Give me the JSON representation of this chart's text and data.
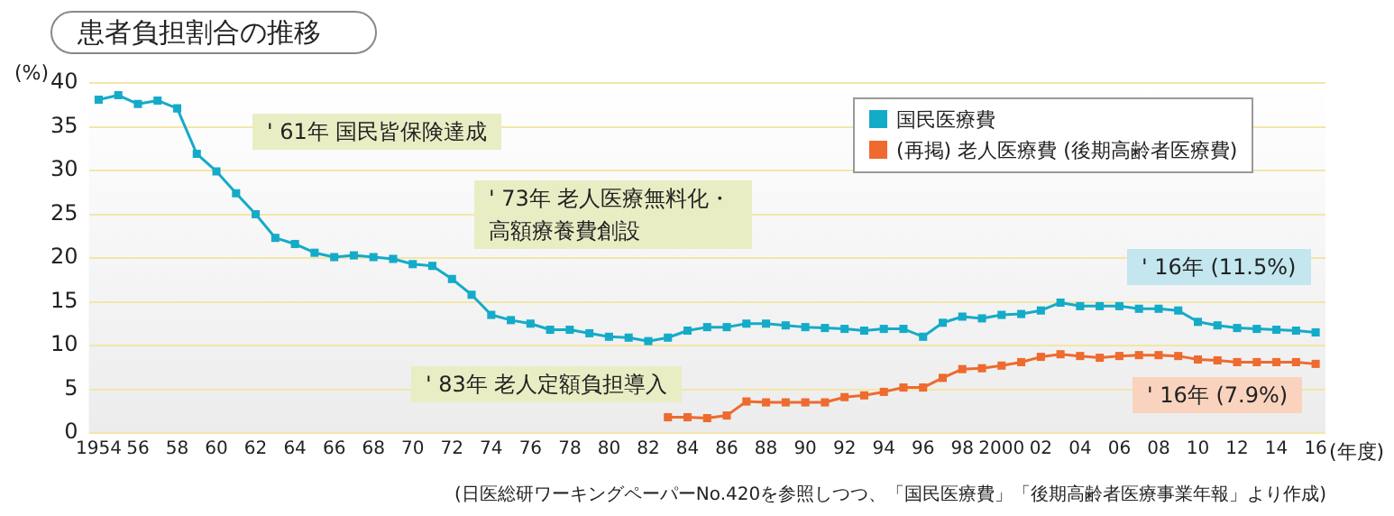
{
  "chart_data": {
    "type": "line",
    "title": "患者負担割合の推移",
    "ylabel": "(%)",
    "xlabel": "(年度)",
    "x": [
      1954,
      1955,
      1956,
      1957,
      1958,
      1959,
      1960,
      1961,
      1962,
      1963,
      1964,
      1965,
      1966,
      1967,
      1968,
      1969,
      1970,
      1971,
      1972,
      1973,
      1974,
      1975,
      1976,
      1977,
      1978,
      1979,
      1980,
      1981,
      1982,
      1983,
      1984,
      1985,
      1986,
      1987,
      1988,
      1989,
      1990,
      1991,
      1992,
      1993,
      1994,
      1995,
      1996,
      1997,
      1998,
      1999,
      2000,
      2001,
      2002,
      2003,
      2004,
      2005,
      2006,
      2007,
      2008,
      2009,
      2010,
      2011,
      2012,
      2013,
      2014,
      2015,
      2016
    ],
    "series": [
      {
        "name": "国民医療費",
        "color": "#14abc9",
        "values": [
          38.1,
          38.6,
          37.6,
          38.0,
          37.1,
          31.9,
          29.9,
          27.4,
          25.0,
          22.3,
          21.6,
          20.6,
          20.1,
          20.3,
          20.1,
          19.9,
          19.3,
          19.1,
          17.6,
          15.8,
          13.5,
          12.9,
          12.5,
          11.8,
          11.8,
          11.4,
          11.0,
          10.9,
          10.5,
          10.9,
          11.7,
          12.1,
          12.1,
          12.5,
          12.5,
          12.3,
          12.1,
          12.0,
          11.9,
          11.7,
          11.9,
          11.9,
          11.0,
          12.6,
          13.3,
          13.1,
          13.5,
          13.6,
          14.0,
          14.9,
          14.5,
          14.5,
          14.5,
          14.2,
          14.2,
          14.0,
          12.7,
          12.3,
          12.0,
          11.9,
          11.8,
          11.7,
          11.5
        ]
      },
      {
        "name": "(再掲) 老人医療費 (後期高齢者医療費)",
        "color": "#ee6a2e",
        "values": [
          null,
          null,
          null,
          null,
          null,
          null,
          null,
          null,
          null,
          null,
          null,
          null,
          null,
          null,
          null,
          null,
          null,
          null,
          null,
          null,
          null,
          null,
          null,
          null,
          null,
          null,
          null,
          null,
          null,
          1.8,
          1.8,
          1.7,
          2.0,
          3.6,
          3.5,
          3.5,
          3.5,
          3.5,
          4.1,
          4.3,
          4.7,
          5.2,
          5.2,
          6.3,
          7.3,
          7.4,
          7.7,
          8.1,
          8.7,
          9.0,
          8.8,
          8.6,
          8.8,
          8.9,
          8.9,
          8.8,
          8.4,
          8.3,
          8.1,
          8.1,
          8.1,
          8.1,
          7.9
        ]
      }
    ],
    "xlim": [
      1953.5,
      2016.5
    ],
    "xticks": [
      1954,
      {
        "value": 1956,
        "label": "56"
      },
      {
        "value": 1958,
        "label": "58"
      },
      {
        "value": 1960,
        "label": "60"
      },
      {
        "value": 1962,
        "label": "62"
      },
      {
        "value": 1964,
        "label": "64"
      },
      {
        "value": 1966,
        "label": "66"
      },
      {
        "value": 1968,
        "label": "68"
      },
      {
        "value": 1970,
        "label": "70"
      },
      {
        "value": 1972,
        "label": "72"
      },
      {
        "value": 1974,
        "label": "74"
      },
      {
        "value": 1976,
        "label": "76"
      },
      {
        "value": 1978,
        "label": "78"
      },
      {
        "value": 1980,
        "label": "80"
      },
      {
        "value": 1982,
        "label": "82"
      },
      {
        "value": 1984,
        "label": "84"
      },
      {
        "value": 1986,
        "label": "86"
      },
      {
        "value": 1988,
        "label": "88"
      },
      {
        "value": 1990,
        "label": "90"
      },
      {
        "value": 1992,
        "label": "92"
      },
      {
        "value": 1994,
        "label": "94"
      },
      {
        "value": 1996,
        "label": "96"
      },
      {
        "value": 1998,
        "label": "98"
      },
      2000,
      {
        "value": 2002,
        "label": "02"
      },
      {
        "value": 2004,
        "label": "04"
      },
      {
        "value": 2006,
        "label": "06"
      },
      {
        "value": 2008,
        "label": "08"
      },
      {
        "value": 2010,
        "label": "10"
      },
      {
        "value": 2012,
        "label": "12"
      },
      {
        "value": 2014,
        "label": "14"
      },
      {
        "value": 2016,
        "label": "16"
      }
    ],
    "ylim": [
      0,
      40
    ],
    "yticks": [
      0,
      5,
      10,
      15,
      20,
      25,
      30,
      35,
      40
    ],
    "grid": "y",
    "legend": "top right",
    "marker": "square",
    "line_style": "solid",
    "annotations": [
      "' 61年 国民皆保険達成",
      "' 73年 老人医療無料化・高額療養費創設",
      "' 83年 老人定額負担導入",
      "' 16年 (11.5%)",
      "' 16年 (7.9%)",
      "(日医総研ワーキングペーパーNo.420を参照しつつ、「国民医療費」「後期高齢者医療事業年報」より作成)"
    ]
  }
}
